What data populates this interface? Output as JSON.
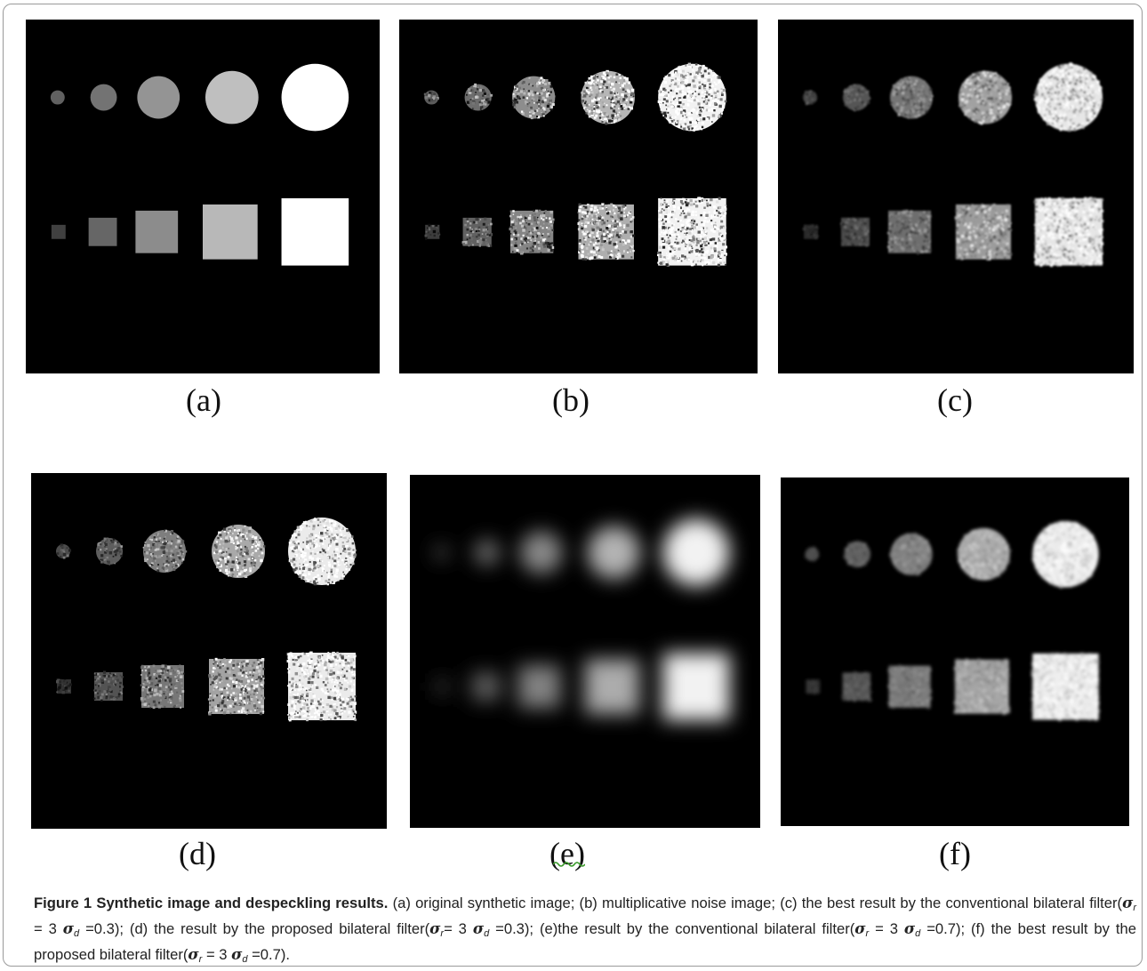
{
  "panels": [
    {
      "label": "(a)",
      "style": "clean"
    },
    {
      "label": "(b)",
      "style": "noisy"
    },
    {
      "label": "(c)",
      "style": "faint"
    },
    {
      "label": "(d)",
      "style": "noisy2"
    },
    {
      "label": "(e)",
      "style": "blur"
    },
    {
      "label": "(f)",
      "style": "smooth"
    }
  ],
  "caption": {
    "title": "Figure 1 Synthetic image and despeckling results.",
    "a": "(a) original synthetic image;",
    "b": "(b) multiplicative noise image;",
    "c_pre": "(c) the best result by the conventional bilateral filter(",
    "c_mid": " = 3 ",
    "c_post": " =0.3);",
    "d_pre": "(d) the result by the proposed bilateral filter(",
    "d_mid": "= 3 ",
    "d_post": " =0.3);",
    "e_pre": "(e)the result by the conventional bilateral filter(",
    "e_mid": " = 3 ",
    "e_post": " =0.7);",
    "f_pre": "(f) the best result by the proposed bilateral filter(",
    "f_mid": " = 3 ",
    "f_post": " =0.7).",
    "sigma": "σ",
    "sub_r": "r",
    "sub_d": "d"
  }
}
